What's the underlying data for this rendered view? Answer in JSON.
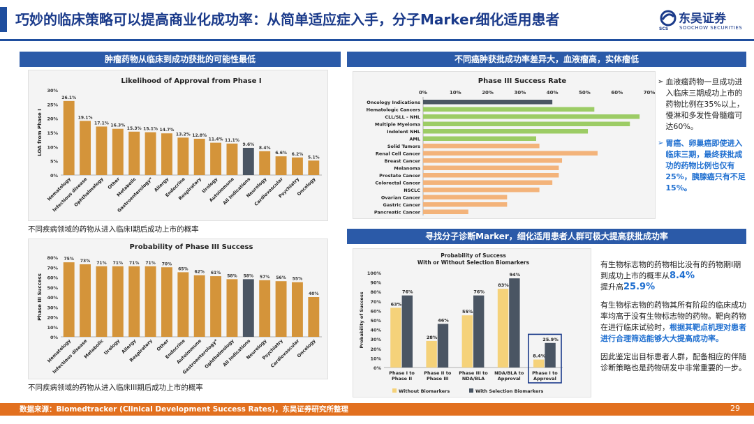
{
  "header": {
    "title": "巧妙的临床策略可以提高商业化成功率：从简单适应症入手，分子Marker细化适用患者",
    "logo_cn": "东吴证券",
    "logo_en": "SOOCHOW SECURITIES",
    "logo_abbr": "SCS"
  },
  "sections": {
    "left_header": "肿瘤药物从临床到成功获批的可能性最低",
    "right_top_header": "不同癌肿获批成功率差异大，血液瘤高，实体瘤低",
    "right_bottom_header": "寻找分子诊断Marker，细化适用患者人群可极大提高获批成功率"
  },
  "captions": {
    "chart1": "不同疾病领域的药物从进入临床I期后成功上市的概率",
    "chart2": "不同疾病领域的药物从进入临床III期后成功上市的概率"
  },
  "bullets": {
    "b1": "血液瘤药物一旦成功进入临床三期成功上市的药物比例在35%以上，慢淋和多发性骨髓瘤可达60%。",
    "b2": "胃癌、卵巢癌即使进入临床三期，最终获批成功的药物比例也仅有25%，胰腺癌只有不足15%。"
  },
  "notes": {
    "n1_a": "有生物标志物的药物相比没有的药物期I期到成功上市的概率从",
    "n1_v1": "8.4%",
    "n1_b": "提升高",
    "n1_v2": "25.9%",
    "n2_a": "有生物标志物的药物其所有阶段的临床成功率均高于没有生物标志物的药物。靶向药物在进行临床试验时，",
    "n2_b": "根据其靶点机理对患者进行合理筛选能够大大提高成功率。",
    "n3": "因此鉴定出目标患者人群，配备相应的伴随诊断策略也是药物研发中非常重要的一步。"
  },
  "footer": {
    "source": "数据来源：Biomedtracker (Clinical Development Success Rates)，东吴证券研究所整理",
    "page": "29"
  },
  "colors": {
    "gold": "#d4943a",
    "slate": "#4a5563",
    "green": "#9ccc65",
    "orange": "#f3b37a",
    "light_gold": "#f5d27a",
    "brand_blue": "#1f4e9e"
  },
  "chart_data": [
    {
      "type": "bar",
      "title": "Likelihood of Approval from Phase I",
      "xlabel": "",
      "ylabel": "LOA from Phase I",
      "ylim": [
        0,
        30
      ],
      "yticks": [
        "0%",
        "5%",
        "10%",
        "15%",
        "20%",
        "25%",
        "30%"
      ],
      "categories": [
        "Hematology",
        "Infectious disease",
        "Ophthalmology",
        "Other",
        "Metabolic",
        "Gastroenterology*",
        "Allergy",
        "Endocrine",
        "Respiratory",
        "Urology",
        "Autoimmune",
        "All Indications",
        "Neurology",
        "Cardiovascular",
        "Psychiatry",
        "Oncology"
      ],
      "values": [
        26.1,
        19.1,
        17.1,
        16.3,
        15.3,
        15.1,
        14.7,
        13.2,
        12.8,
        11.4,
        11.1,
        9.6,
        8.4,
        6.6,
        6.2,
        5.1
      ],
      "labels": [
        "26.1%",
        "19.1%",
        "17.1%",
        "16.3%",
        "15.3%",
        "15.1%",
        "14.7%",
        "13.2%",
        "12.8%",
        "11.4%",
        "11.1%",
        "9.6%",
        "8.4%",
        "6.6%",
        "6.2%",
        "5.1%"
      ],
      "highlight_category": "All Indications"
    },
    {
      "type": "bar",
      "title": "Probability of Phase III Success",
      "xlabel": "",
      "ylabel": "Phase III Success",
      "ylim": [
        0,
        80
      ],
      "yticks": [
        "0%",
        "10%",
        "20%",
        "30%",
        "40%",
        "50%",
        "60%",
        "70%",
        "80%"
      ],
      "categories": [
        "Hematology",
        "Infectious disease",
        "Metabolic",
        "Urology",
        "Allergy",
        "Respiratory",
        "Other",
        "Endocrine",
        "Autoimmune",
        "Gastroenterology*",
        "Ophthalmology",
        "All Indications",
        "Neurology",
        "Psychiatry",
        "Cardiovascular",
        "Oncology"
      ],
      "values": [
        75,
        73,
        71,
        71,
        71,
        71,
        70,
        65,
        62,
        61,
        58,
        58,
        57,
        56,
        55,
        40
      ],
      "labels": [
        "75%",
        "73%",
        "71%",
        "71%",
        "71%",
        "71%",
        "70%",
        "65%",
        "62%",
        "61%",
        "58%",
        "58%",
        "57%",
        "56%",
        "55%",
        "40%"
      ],
      "highlight_category": "All Indications"
    },
    {
      "type": "bar",
      "orientation": "horizontal",
      "title": "Phase III Success Rate",
      "xlim": [
        0,
        70
      ],
      "xticks": [
        "0%",
        "10%",
        "20%",
        "30%",
        "40%",
        "50%",
        "60%",
        "70%"
      ],
      "categories": [
        "Oncology Indications",
        "Hematologic Cancers",
        "CLL/SLL - NHL",
        "Multiple Myeloma",
        "Indolent NHL",
        "AML",
        "Solid Tumors",
        "Renal Cell Cancer",
        "Breast Cancer",
        "Melanoma",
        "Prostate Cancer",
        "Colorectal Cancer",
        "NSCLC",
        "Ovarian Cancer",
        "Gastric Cancer",
        "Pancreatic Cancer"
      ],
      "values": [
        40,
        53,
        67,
        64,
        51,
        35,
        36,
        54,
        43,
        42,
        42,
        40,
        36,
        26,
        26,
        14
      ],
      "groups": [
        "overall",
        "heme",
        "heme",
        "heme",
        "heme",
        "heme",
        "solid",
        "solid",
        "solid",
        "solid",
        "solid",
        "solid",
        "solid",
        "solid",
        "solid",
        "solid"
      ]
    },
    {
      "type": "bar",
      "title": "Probability of Success\nWith or Without Selection Biomarkers",
      "ylabel": "Probability of Success",
      "ylim": [
        0,
        100
      ],
      "yticks": [
        "0%",
        "10%",
        "20%",
        "30%",
        "40%",
        "50%",
        "60%",
        "70%",
        "80%",
        "90%",
        "100%"
      ],
      "categories": [
        "Phase I to Phase II",
        "Phase II to Phase III",
        "Phase III to NDA/BLA",
        "NDA/BLA to Approval",
        "Phase I to Approval"
      ],
      "series": [
        {
          "name": "Without Biomarkers",
          "values": [
            63,
            28,
            55,
            83,
            8.4
          ],
          "labels": [
            "63%",
            "28%",
            "55%",
            "83%",
            "8.4%"
          ]
        },
        {
          "name": "With Selection Biomarkers",
          "values": [
            76,
            46,
            76,
            94,
            25.9
          ],
          "labels": [
            "76%",
            "46%",
            "76%",
            "94%",
            "25.9%"
          ]
        }
      ],
      "highlight_category": "Phase I to Approval"
    }
  ]
}
